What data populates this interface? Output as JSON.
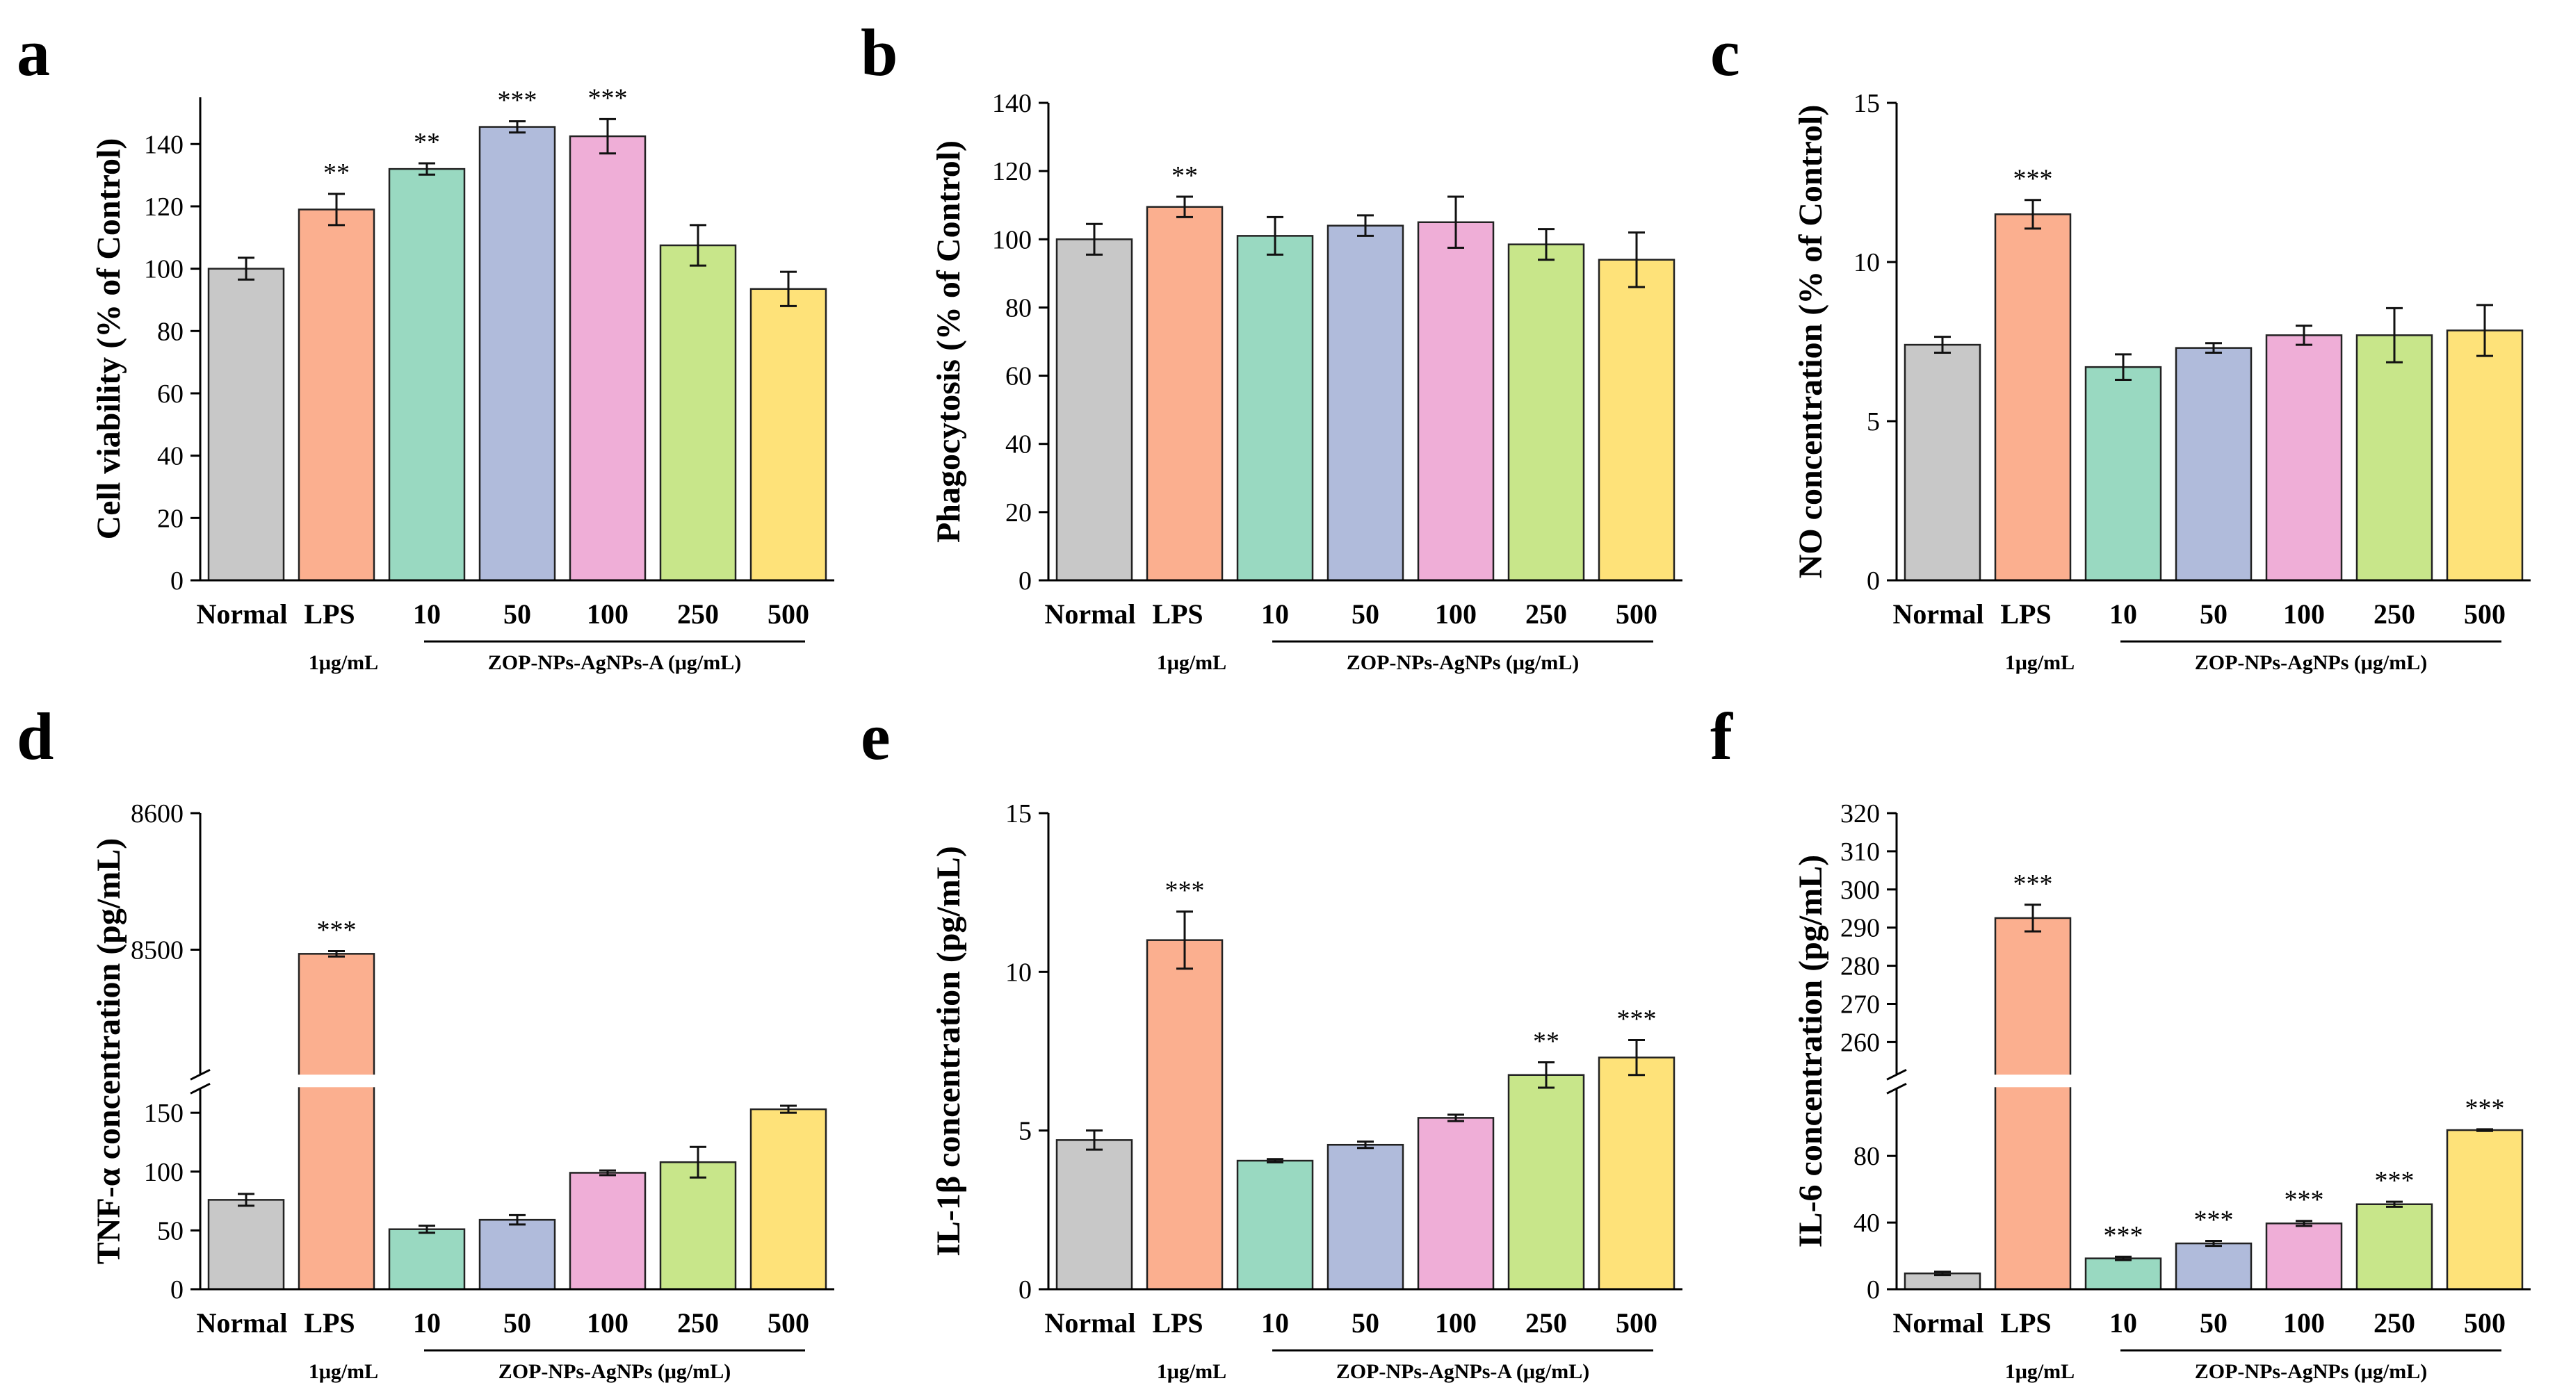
{
  "figure": {
    "colors": [
      "#c8c8c8",
      "#fbaf8f",
      "#99d9c1",
      "#b0bbdb",
      "#efaed7",
      "#c8e68a",
      "#fee279"
    ]
  },
  "chart_data": [
    {
      "panel": "a",
      "type": "bar",
      "ylabel": "Cell viability (% of Control)",
      "categories": [
        "Normal",
        "LPS",
        "10",
        "50",
        "100",
        "250",
        "500"
      ],
      "values": [
        100,
        119,
        132,
        145.5,
        142.5,
        107.5,
        93.5
      ],
      "errors": [
        3.5,
        5,
        1.8,
        1.8,
        5.5,
        6.5,
        5.5
      ],
      "significance": [
        "",
        "**",
        "**",
        "***",
        "***",
        "",
        ""
      ],
      "ylim": [
        0,
        155
      ],
      "yticks": [
        0,
        20,
        40,
        60,
        80,
        100,
        120,
        140
      ],
      "lps_note": "1μg/mL",
      "group_label": "ZOP-NPs-AgNPs-A (μg/mL)"
    },
    {
      "panel": "b",
      "type": "bar",
      "ylabel": "Phagocytosis (% of Control)",
      "categories": [
        "Normal",
        "LPS",
        "10",
        "50",
        "100",
        "250",
        "500"
      ],
      "values": [
        100,
        109.5,
        101,
        104,
        105,
        98.5,
        94
      ],
      "errors": [
        4.5,
        3,
        5.5,
        3,
        7.5,
        4.5,
        8
      ],
      "significance": [
        "",
        "**",
        "",
        "",
        "",
        "",
        ""
      ],
      "ylim": [
        0,
        140
      ],
      "yticks": [
        0,
        20,
        40,
        60,
        80,
        100,
        120,
        140
      ],
      "lps_note": "1μg/mL",
      "group_label": "ZOP-NPs-AgNPs (μg/mL)"
    },
    {
      "panel": "c",
      "type": "bar",
      "ylabel": "NO concentration (% of Control)",
      "categories": [
        "Normal",
        "LPS",
        "10",
        "50",
        "100",
        "250",
        "500"
      ],
      "values": [
        7.4,
        11.5,
        6.7,
        7.3,
        7.7,
        7.7,
        7.85
      ],
      "errors": [
        0.25,
        0.45,
        0.4,
        0.15,
        0.3,
        0.85,
        0.8
      ],
      "significance": [
        "",
        "***",
        "",
        "",
        "",
        "",
        ""
      ],
      "ylim": [
        0,
        15
      ],
      "yticks": [
        0,
        5,
        10,
        15
      ],
      "lps_note": "1μg/mL",
      "group_label": "ZOP-NPs-AgNPs (μg/mL)"
    },
    {
      "panel": "d",
      "type": "bar",
      "broken_axis": true,
      "ylabel": "TNF-α concentration (pg/mL)",
      "categories": [
        "Normal",
        "LPS",
        "10",
        "50",
        "100",
        "250",
        "500"
      ],
      "values": [
        76,
        8497,
        51,
        59,
        99,
        108,
        153
      ],
      "errors": [
        5,
        2,
        3,
        4,
        2,
        13,
        3
      ],
      "significance": [
        "",
        "***",
        "",
        "",
        "",
        "",
        ""
      ],
      "ylim_lower": [
        0,
        170
      ],
      "ylim_upper": [
        8410,
        8600
      ],
      "yticks_lower": [
        0,
        50,
        100,
        150
      ],
      "yticks_upper": [
        8500,
        8600
      ],
      "lps_note": "1μg/mL",
      "group_label": "ZOP-NPs-AgNPs (μg/mL)"
    },
    {
      "panel": "e",
      "type": "bar",
      "ylabel": "IL-1β concentration (pg/mL)",
      "categories": [
        "Normal",
        "LPS",
        "10",
        "50",
        "100",
        "250",
        "500"
      ],
      "values": [
        4.7,
        11,
        4.05,
        4.55,
        5.4,
        6.75,
        7.3
      ],
      "errors": [
        0.3,
        0.9,
        0.05,
        0.1,
        0.1,
        0.4,
        0.55
      ],
      "significance": [
        "",
        "***",
        "",
        "",
        "",
        "**",
        "***"
      ],
      "ylim": [
        0,
        15
      ],
      "yticks": [
        0,
        5,
        10,
        15
      ],
      "lps_note": "1μg/mL",
      "group_label": "ZOP-NPs-AgNPs-A (μg/mL)"
    },
    {
      "panel": "f",
      "type": "bar",
      "broken_axis": true,
      "ylabel": "IL-6 concentration (pg/mL)",
      "categories": [
        "Normal",
        "LPS",
        "10",
        "50",
        "100",
        "250",
        "500"
      ],
      "values": [
        9.5,
        292.5,
        18.5,
        27.5,
        39.5,
        51,
        95.5
      ],
      "errors": [
        1,
        3.5,
        1,
        1.5,
        1.5,
        1.5,
        0.5
      ],
      "significance": [
        "",
        "***",
        "***",
        "***",
        "***",
        "***",
        "***"
      ],
      "ylim_lower": [
        0,
        120
      ],
      "ylim_upper": [
        252,
        320
      ],
      "yticks_lower": [
        0,
        40,
        80
      ],
      "yticks_upper": [
        260,
        270,
        280,
        290,
        300,
        310,
        320
      ],
      "lps_note": "1μg/mL",
      "group_label": "ZOP-NPs-AgNPs (μg/mL)"
    }
  ]
}
